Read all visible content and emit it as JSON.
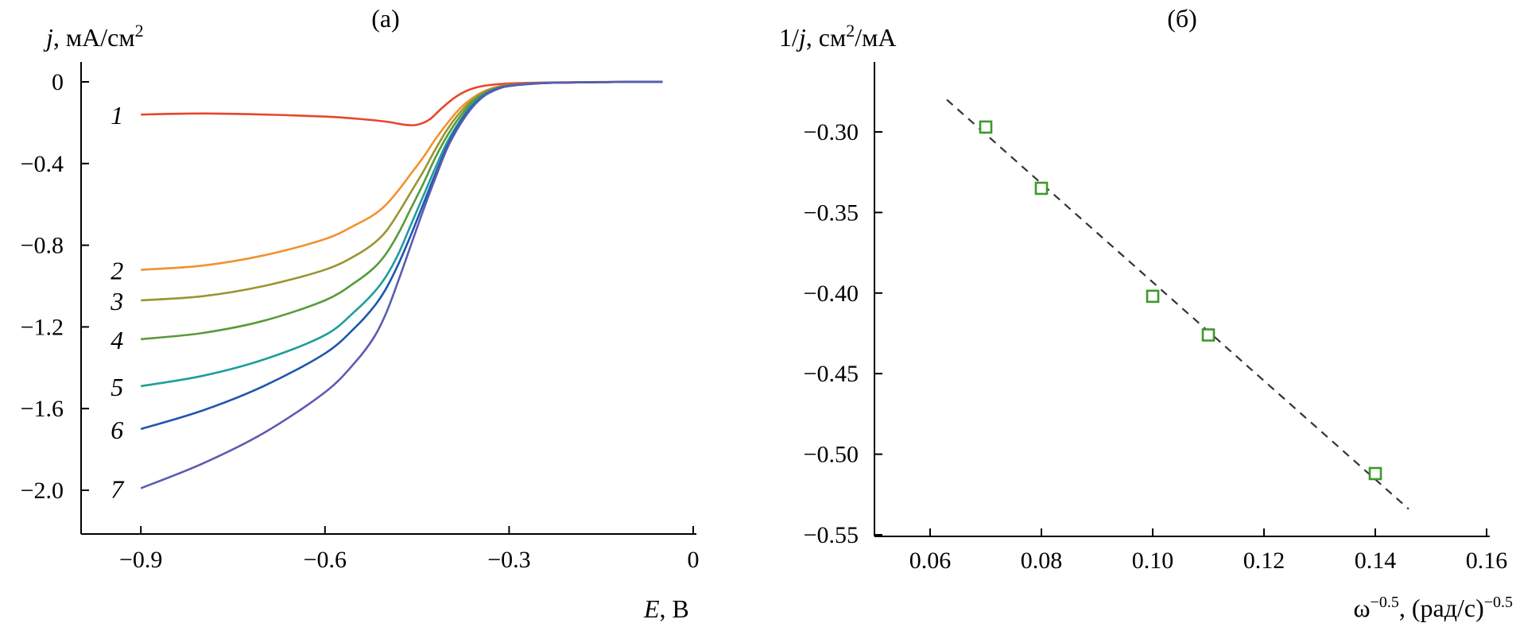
{
  "chart_data": [
    {
      "panel": "(a)",
      "type": "line",
      "title": "(а)",
      "ylabel_italic": "j",
      "ylabel_rest": ", мА/см",
      "ylabel_sup": "2",
      "xlabel_italic": "E",
      "xlabel_rest": ", В",
      "xlim": [
        -1.0,
        0.0
      ],
      "ylim": [
        -2.2,
        0.1
      ],
      "xticks": [
        -0.9,
        -0.6,
        -0.3,
        0.0
      ],
      "xticklabels": [
        "−0.9",
        "−0.6",
        "−0.3",
        "0"
      ],
      "yticks": [
        0.0,
        -0.4,
        -0.8,
        -1.2,
        -1.6,
        -2.0
      ],
      "yticklabels": [
        "0",
        "−0.4",
        "−0.8",
        "−1.2",
        "−1.6",
        "−2.0"
      ],
      "series": [
        {
          "name": "1",
          "color": "#e8452c",
          "x": [
            -0.9,
            -0.8,
            -0.7,
            -0.6,
            -0.55,
            -0.5,
            -0.47,
            -0.45,
            -0.43,
            -0.41,
            -0.39,
            -0.37,
            -0.35,
            -0.33,
            -0.3,
            -0.25,
            -0.2,
            -0.1,
            -0.05
          ],
          "y": [
            -0.16,
            -0.155,
            -0.16,
            -0.17,
            -0.18,
            -0.195,
            -0.21,
            -0.21,
            -0.185,
            -0.13,
            -0.08,
            -0.045,
            -0.025,
            -0.015,
            -0.008,
            -0.004,
            -0.002,
            0.0,
            0.0
          ]
        },
        {
          "name": "2",
          "color": "#f2922e",
          "x": [
            -0.9,
            -0.8,
            -0.7,
            -0.6,
            -0.55,
            -0.52,
            -0.5,
            -0.48,
            -0.46,
            -0.44,
            -0.42,
            -0.4,
            -0.38,
            -0.36,
            -0.34,
            -0.32,
            -0.3,
            -0.25,
            -0.2,
            -0.1,
            -0.05
          ],
          "y": [
            -0.92,
            -0.9,
            -0.85,
            -0.77,
            -0.7,
            -0.65,
            -0.6,
            -0.53,
            -0.45,
            -0.37,
            -0.28,
            -0.2,
            -0.13,
            -0.08,
            -0.045,
            -0.025,
            -0.015,
            -0.006,
            -0.003,
            0.0,
            0.0
          ]
        },
        {
          "name": "3",
          "color": "#9a9530",
          "x": [
            -0.9,
            -0.8,
            -0.7,
            -0.6,
            -0.55,
            -0.52,
            -0.5,
            -0.48,
            -0.46,
            -0.44,
            -0.42,
            -0.4,
            -0.38,
            -0.36,
            -0.34,
            -0.32,
            -0.3,
            -0.25,
            -0.2,
            -0.1,
            -0.05
          ],
          "y": [
            -1.07,
            -1.05,
            -1.0,
            -0.92,
            -0.85,
            -0.79,
            -0.73,
            -0.64,
            -0.54,
            -0.44,
            -0.33,
            -0.23,
            -0.15,
            -0.09,
            -0.05,
            -0.028,
            -0.016,
            -0.006,
            -0.003,
            0.0,
            0.0
          ]
        },
        {
          "name": "4",
          "color": "#5a9a3a",
          "x": [
            -0.9,
            -0.8,
            -0.7,
            -0.6,
            -0.55,
            -0.52,
            -0.5,
            -0.48,
            -0.46,
            -0.44,
            -0.42,
            -0.4,
            -0.38,
            -0.36,
            -0.34,
            -0.32,
            -0.3,
            -0.25,
            -0.2,
            -0.1,
            -0.05
          ],
          "y": [
            -1.26,
            -1.23,
            -1.17,
            -1.07,
            -0.98,
            -0.91,
            -0.84,
            -0.74,
            -0.62,
            -0.5,
            -0.37,
            -0.26,
            -0.17,
            -0.1,
            -0.055,
            -0.03,
            -0.017,
            -0.006,
            -0.003,
            0.0,
            0.0
          ]
        },
        {
          "name": "5",
          "color": "#1f9e9a",
          "x": [
            -0.9,
            -0.8,
            -0.7,
            -0.6,
            -0.55,
            -0.52,
            -0.5,
            -0.48,
            -0.46,
            -0.44,
            -0.42,
            -0.4,
            -0.38,
            -0.36,
            -0.34,
            -0.32,
            -0.3,
            -0.25,
            -0.2,
            -0.1,
            -0.05
          ],
          "y": [
            -1.49,
            -1.44,
            -1.36,
            -1.24,
            -1.12,
            -1.03,
            -0.95,
            -0.84,
            -0.7,
            -0.56,
            -0.42,
            -0.29,
            -0.19,
            -0.11,
            -0.06,
            -0.032,
            -0.018,
            -0.006,
            -0.003,
            0.0,
            0.0
          ]
        },
        {
          "name": "6",
          "color": "#1f56b0",
          "x": [
            -0.9,
            -0.8,
            -0.7,
            -0.6,
            -0.55,
            -0.52,
            -0.5,
            -0.48,
            -0.46,
            -0.44,
            -0.42,
            -0.4,
            -0.38,
            -0.36,
            -0.34,
            -0.32,
            -0.3,
            -0.25,
            -0.2,
            -0.1,
            -0.05
          ],
          "y": [
            -1.7,
            -1.61,
            -1.49,
            -1.33,
            -1.2,
            -1.1,
            -1.01,
            -0.89,
            -0.75,
            -0.6,
            -0.45,
            -0.31,
            -0.2,
            -0.12,
            -0.065,
            -0.035,
            -0.02,
            -0.007,
            -0.003,
            0.0,
            0.0
          ]
        },
        {
          "name": "7",
          "color": "#5c5cb0",
          "x": [
            -0.9,
            -0.8,
            -0.7,
            -0.6,
            -0.55,
            -0.52,
            -0.5,
            -0.48,
            -0.46,
            -0.44,
            -0.42,
            -0.4,
            -0.38,
            -0.36,
            -0.34,
            -0.32,
            -0.3,
            -0.25,
            -0.2,
            -0.1,
            -0.05
          ],
          "y": [
            -1.99,
            -1.87,
            -1.72,
            -1.52,
            -1.37,
            -1.25,
            -1.13,
            -0.97,
            -0.8,
            -0.63,
            -0.47,
            -0.32,
            -0.21,
            -0.125,
            -0.068,
            -0.037,
            -0.021,
            -0.007,
            -0.003,
            0.0,
            0.0
          ]
        }
      ]
    },
    {
      "panel": "(b)",
      "type": "scatter",
      "title": "(б)",
      "ylabel_pre": "1/",
      "ylabel_italic": "j",
      "ylabel_mid": ", см",
      "ylabel_sup": "2",
      "ylabel_post": "/мА",
      "xlabel_base": "ω",
      "xlabel_sup1": "−0.5",
      "xlabel_mid": ", (рад/с)",
      "xlabel_sup2": "−0.5",
      "xlim": [
        0.05,
        0.16
      ],
      "ylim": [
        -0.55,
        -0.27
      ],
      "xticks": [
        0.06,
        0.08,
        0.1,
        0.12,
        0.14,
        0.16
      ],
      "xticklabels": [
        "0.06",
        "0.08",
        "0.10",
        "0.12",
        "0.14",
        "0.16"
      ],
      "yticks": [
        -0.3,
        -0.35,
        -0.4,
        -0.45,
        -0.5,
        -0.55
      ],
      "yticklabels": [
        "−0.30",
        "−0.35",
        "−0.40",
        "−0.45",
        "−0.50",
        "−0.55"
      ],
      "points": {
        "x": [
          0.07,
          0.08,
          0.1,
          0.11,
          0.14
        ],
        "y": [
          -0.297,
          -0.335,
          -0.402,
          -0.426,
          -0.512
        ]
      },
      "marker_color": "#3a9a2a",
      "fit": {
        "x": [
          0.063,
          0.146
        ],
        "y": [
          -0.28,
          -0.534
        ],
        "style": "dashed",
        "color": "#333333"
      }
    }
  ]
}
